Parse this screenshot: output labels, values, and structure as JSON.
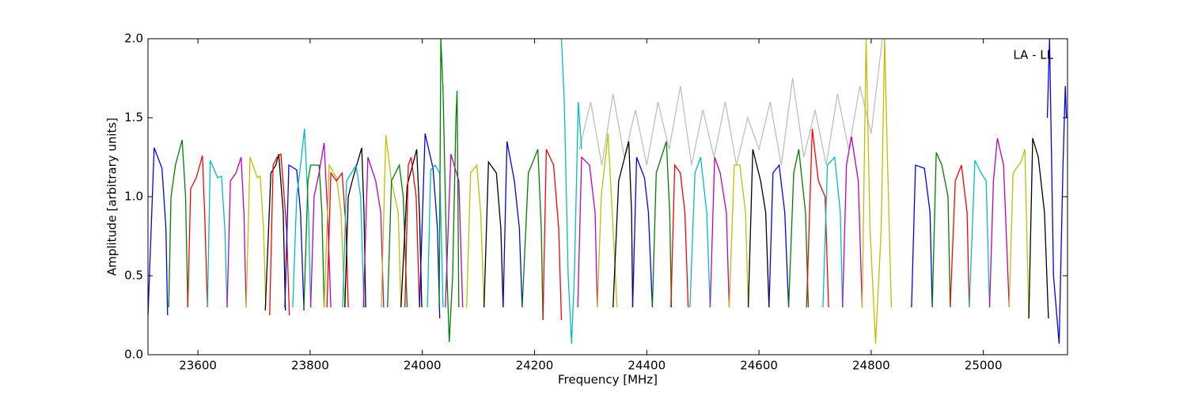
{
  "chart_data": {
    "type": "line",
    "xlabel": "Frequency [MHz]",
    "ylabel": "Amplitude [arbitrary units]",
    "annotation": "LA - LL",
    "xlim": [
      23511,
      25150
    ],
    "ylim": [
      0,
      2
    ],
    "xticks": [
      23600,
      23800,
      24000,
      24200,
      24400,
      24600,
      24800,
      25000
    ],
    "yticks": [
      {
        "value": 0,
        "label": "0.0"
      },
      0.5,
      {
        "value": 1,
        "label": "1.0"
      },
      1.5,
      {
        "value": 2,
        "label": "2.0"
      }
    ],
    "series": [
      {
        "color": "#bfbfbf",
        "x": [
          24280,
          24300,
          24320,
          24340,
          24360,
          24380,
          24400,
          24420,
          24440,
          24460,
          24480,
          24500,
          24520,
          24540,
          24560,
          24580,
          24600,
          24620,
          24640,
          24660,
          24680,
          24700,
          24720,
          24740,
          24760,
          24780,
          24800,
          24820
        ],
        "values": [
          1.3,
          1.6,
          1.2,
          1.65,
          1.25,
          1.55,
          1.2,
          1.6,
          1.3,
          1.7,
          1.2,
          1.55,
          1.25,
          1.6,
          1.2,
          1.5,
          1.3,
          1.6,
          1.2,
          1.75,
          1.25,
          1.55,
          1.2,
          1.65,
          1.3,
          1.7,
          1.4,
          2.0
        ]
      },
      {
        "color": "#0000ff",
        "x": [
          23511,
          23522,
          23536,
          23543,
          23546
        ],
        "values": [
          0.25,
          1.31,
          1.18,
          0.8,
          0.25
        ]
      },
      {
        "color": "#008000",
        "x": [
          23548,
          23552,
          23560,
          23572,
          23578,
          23582
        ],
        "values": [
          0.3,
          1.0,
          1.2,
          1.36,
          1.0,
          0.3
        ]
      },
      {
        "color": "#ff0000",
        "x": [
          23582,
          23587,
          23597,
          23608,
          23612,
          23617
        ],
        "values": [
          0.3,
          1.05,
          1.12,
          1.26,
          0.9,
          0.3
        ]
      },
      {
        "color": "#00bfbf",
        "x": [
          23617,
          23622,
          23635,
          23642,
          23648,
          23652
        ],
        "values": [
          0.3,
          1.23,
          1.12,
          1.13,
          0.8,
          0.3
        ]
      },
      {
        "color": "#bf00bf",
        "x": [
          23652,
          23658,
          23668,
          23677,
          23682,
          23686
        ],
        "values": [
          0.3,
          1.1,
          1.15,
          1.25,
          0.9,
          0.3
        ]
      },
      {
        "color": "#bfbf00",
        "x": [
          23686,
          23693,
          23706,
          23711,
          23717,
          23721
        ],
        "values": [
          0.3,
          1.25,
          1.12,
          1.13,
          0.8,
          0.3
        ]
      },
      {
        "color": "#000000",
        "x": [
          23720,
          23730,
          23739,
          23744,
          23752,
          23756
        ],
        "values": [
          0.28,
          1.15,
          1.2,
          1.27,
          0.9,
          0.28
        ]
      },
      {
        "color": "#ff0000",
        "x": [
          23728,
          23734,
          23741,
          23748,
          23758,
          23763
        ],
        "values": [
          0.25,
          1.2,
          1.25,
          1.27,
          0.8,
          0.25
        ]
      },
      {
        "color": "#0000ff",
        "x": [
          23755,
          23762,
          23776,
          23783,
          23789
        ],
        "values": [
          0.3,
          1.2,
          1.17,
          0.9,
          0.28
        ]
      },
      {
        "color": "#00bfbf",
        "x": [
          23769,
          23776,
          23783,
          23790,
          23797,
          23801
        ],
        "values": [
          0.3,
          1.0,
          1.2,
          1.43,
          0.9,
          0.3
        ]
      },
      {
        "color": "#008000",
        "x": [
          23789,
          23796,
          23801,
          23816,
          23821,
          23825
        ],
        "values": [
          0.3,
          1.1,
          1.2,
          1.2,
          0.9,
          0.3
        ]
      },
      {
        "color": "#bf00bf",
        "x": [
          23801,
          23807,
          23816,
          23825,
          23831,
          23837
        ],
        "values": [
          0.3,
          1.0,
          1.15,
          1.34,
          0.9,
          0.3
        ]
      },
      {
        "color": "#bfbf00",
        "x": [
          23825,
          23834,
          23847,
          23855,
          23862
        ],
        "values": [
          0.3,
          1.2,
          1.12,
          0.9,
          0.3
        ]
      },
      {
        "color": "#ff0000",
        "x": [
          23830,
          23837,
          23847,
          23857,
          23864,
          23868
        ],
        "values": [
          0.3,
          1.15,
          1.1,
          1.15,
          0.8,
          0.3
        ]
      },
      {
        "color": "#000000",
        "x": [
          23862,
          23868,
          23875,
          23892,
          23896,
          23899
        ],
        "values": [
          0.3,
          1.0,
          1.1,
          1.31,
          0.9,
          0.3
        ]
      },
      {
        "color": "#00bfbf",
        "x": [
          23858,
          23865,
          23882,
          23890,
          23896
        ],
        "values": [
          0.3,
          1.1,
          1.2,
          1.0,
          0.3
        ]
      },
      {
        "color": "#bf00bf",
        "x": [
          23895,
          23903,
          23917,
          23926,
          23931
        ],
        "values": [
          0.3,
          1.25,
          1.1,
          0.9,
          0.3
        ]
      },
      {
        "color": "#bfbf00",
        "x": [
          23927,
          23935,
          23945,
          23957,
          23962
        ],
        "values": [
          0.3,
          1.39,
          1.1,
          0.9,
          0.3
        ]
      },
      {
        "color": "#008000",
        "x": [
          23938,
          23945,
          23959,
          23966,
          23973
        ],
        "values": [
          0.3,
          1.1,
          1.2,
          1.0,
          0.3
        ]
      },
      {
        "color": "#000000",
        "x": [
          23962,
          23973,
          23990,
          23995,
          23999
        ],
        "values": [
          0.3,
          1.07,
          1.3,
          0.9,
          0.3
        ]
      },
      {
        "color": "#ff0000",
        "x": [
          23969,
          23975,
          23980,
          23989,
          23995
        ],
        "values": [
          0.3,
          1.2,
          1.25,
          1.0,
          0.3
        ]
      },
      {
        "color": "#0000ff",
        "x": [
          23995,
          24005,
          24019,
          24027,
          24031
        ],
        "values": [
          0.3,
          1.4,
          1.18,
          0.8,
          0.23
        ]
      },
      {
        "color": "#00bfbf",
        "x": [
          24009,
          24015,
          24023,
          24031,
          24037
        ],
        "values": [
          0.3,
          1.17,
          1.2,
          1.15,
          0.3
        ]
      },
      {
        "color": "#008000",
        "x": [
          24030,
          24033,
          24037,
          24044,
          24048,
          24054,
          24060,
          24062,
          24065
        ],
        "values": [
          0.3,
          2.0,
          1.67,
          0.5,
          0.08,
          0.5,
          1.5,
          1.67,
          0.3
        ]
      },
      {
        "color": "#bf00bf",
        "x": [
          24041,
          24051,
          24065,
          24072
        ],
        "values": [
          0.3,
          1.27,
          1.1,
          0.3
        ]
      },
      {
        "color": "#bfbf00",
        "x": [
          24079,
          24086,
          24097,
          24104,
          24110
        ],
        "values": [
          0.3,
          1.15,
          1.2,
          0.9,
          0.3
        ]
      },
      {
        "color": "#000000",
        "x": [
          24110,
          24118,
          24132,
          24140,
          24144
        ],
        "values": [
          0.3,
          1.22,
          1.15,
          0.8,
          0.3
        ]
      },
      {
        "color": "#0000ff",
        "x": [
          24144,
          24151,
          24164,
          24173,
          24178
        ],
        "values": [
          0.3,
          1.35,
          1.1,
          0.8,
          0.3
        ]
      },
      {
        "color": "#008000",
        "x": [
          24178,
          24189,
          24206,
          24212,
          24215
        ],
        "values": [
          0.3,
          1.15,
          1.3,
          0.8,
          0.22
        ]
      },
      {
        "color": "#ff0000",
        "x": [
          24215,
          24221,
          24234,
          24243,
          24248
        ],
        "values": [
          0.22,
          1.3,
          1.2,
          0.8,
          0.22
        ]
      },
      {
        "color": "#00bfbf",
        "x": [
          24248,
          24253,
          24260,
          24266,
          24271,
          24278,
          24284
        ],
        "values": [
          2.0,
          1.6,
          0.5,
          0.07,
          0.5,
          1.6,
          1.3
        ]
      },
      {
        "color": "#bf00bf",
        "x": [
          24277,
          24284,
          24298,
          24308,
          24312
        ],
        "values": [
          0.3,
          1.25,
          1.2,
          0.9,
          0.3
        ]
      },
      {
        "color": "#bfbf00",
        "x": [
          24312,
          24319,
          24331,
          24340,
          24347
        ],
        "values": [
          0.3,
          1.0,
          1.4,
          0.8,
          0.3
        ]
      },
      {
        "color": "#000000",
        "x": [
          24340,
          24350,
          24368,
          24373,
          24375
        ],
        "values": [
          0.3,
          1.1,
          1.35,
          0.9,
          0.3
        ]
      },
      {
        "color": "#0000ff",
        "x": [
          24375,
          24382,
          24396,
          24403,
          24410
        ],
        "values": [
          0.3,
          1.25,
          1.12,
          0.9,
          0.3
        ]
      },
      {
        "color": "#008000",
        "x": [
          24410,
          24417,
          24435,
          24441,
          24444
        ],
        "values": [
          0.3,
          1.15,
          1.35,
          0.9,
          0.3
        ]
      },
      {
        "color": "#ff0000",
        "x": [
          24443,
          24450,
          24460,
          24468,
          24474
        ],
        "values": [
          0.3,
          1.2,
          1.15,
          0.9,
          0.3
        ]
      },
      {
        "color": "#00bfbf",
        "x": [
          24477,
          24486,
          24496,
          24507,
          24513
        ],
        "values": [
          0.3,
          1.15,
          1.25,
          0.9,
          0.3
        ]
      },
      {
        "color": "#bf00bf",
        "x": [
          24513,
          24521,
          24531,
          24542,
          24547
        ],
        "values": [
          0.3,
          1.25,
          1.15,
          0.9,
          0.3
        ]
      },
      {
        "color": "#bfbf00",
        "x": [
          24547,
          24556,
          24566,
          24576,
          24581
        ],
        "values": [
          0.3,
          1.2,
          1.2,
          0.9,
          0.3
        ]
      },
      {
        "color": "#000000",
        "x": [
          24581,
          24589,
          24603,
          24612,
          24618
        ],
        "values": [
          0.3,
          1.3,
          1.1,
          0.9,
          0.3
        ]
      },
      {
        "color": "#0000ff",
        "x": [
          24618,
          24625,
          24636,
          24646,
          24653
        ],
        "values": [
          0.3,
          1.15,
          1.2,
          0.9,
          0.3
        ]
      },
      {
        "color": "#008000",
        "x": [
          24653,
          24662,
          24671,
          24683,
          24688
        ],
        "values": [
          0.3,
          1.15,
          1.3,
          0.9,
          0.3
        ]
      },
      {
        "color": "#ff0000",
        "x": [
          24685,
          24695,
          24706,
          24718,
          24724
        ],
        "values": [
          0.3,
          1.43,
          1.1,
          1.0,
          0.3
        ]
      },
      {
        "color": "#00bfbf",
        "x": [
          24714,
          24722,
          24735,
          24745,
          24749
        ],
        "values": [
          0.3,
          1.2,
          1.25,
          0.9,
          0.3
        ]
      },
      {
        "color": "#bf00bf",
        "x": [
          24749,
          24756,
          24765,
          24777,
          24784
        ],
        "values": [
          0.3,
          1.2,
          1.38,
          1.1,
          0.3
        ]
      },
      {
        "color": "#bfbf00",
        "x": [
          24784,
          24791,
          24798,
          24808,
          24818,
          24824,
          24829,
          24836
        ],
        "values": [
          0.3,
          2.0,
          0.8,
          0.07,
          0.8,
          2.0,
          1.25,
          0.3
        ]
      },
      {
        "color": "#0000ff",
        "x": [
          24872,
          24879,
          24895,
          24905,
          24909
        ],
        "values": [
          0.3,
          1.2,
          1.18,
          0.9,
          0.3
        ]
      },
      {
        "color": "#008000",
        "x": [
          24909,
          24916,
          24926,
          24937,
          24941
        ],
        "values": [
          0.3,
          1.28,
          1.2,
          1.0,
          0.3
        ]
      },
      {
        "color": "#ff0000",
        "x": [
          24941,
          24950,
          24961,
          24971,
          24975
        ],
        "values": [
          0.3,
          1.1,
          1.2,
          0.9,
          0.3
        ]
      },
      {
        "color": "#00bfbf",
        "x": [
          24975,
          24985,
          24996,
          25005,
          25011
        ],
        "values": [
          0.3,
          1.23,
          1.15,
          1.1,
          0.3
        ]
      },
      {
        "color": "#bf00bf",
        "x": [
          25011,
          25018,
          25025,
          25036,
          25046
        ],
        "values": [
          0.3,
          1.1,
          1.37,
          1.2,
          0.3
        ]
      },
      {
        "color": "#bfbf00",
        "x": [
          25046,
          25053,
          25067,
          25074,
          25081
        ],
        "values": [
          0.3,
          1.15,
          1.22,
          1.3,
          0.23
        ]
      },
      {
        "color": "#000000",
        "x": [
          25081,
          25088,
          25098,
          25109,
          25116
        ],
        "values": [
          0.23,
          1.37,
          1.25,
          0.9,
          0.23
        ]
      },
      {
        "color": "#0000ff",
        "x": [
          25114,
          25118,
          25125,
          25135,
          25142,
          25146,
          25148
        ],
        "values": [
          1.5,
          2.0,
          0.5,
          0.07,
          1.2,
          1.7,
          1.5
        ]
      }
    ]
  }
}
